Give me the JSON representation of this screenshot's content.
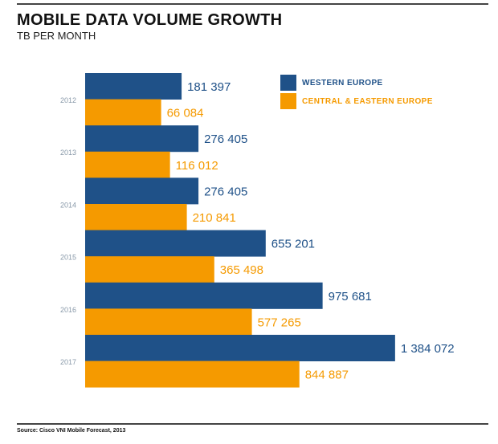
{
  "chart_data": {
    "type": "bar",
    "orientation": "horizontal",
    "title": "MOBILE DATA VOLUME GROWTH",
    "subtitle": "TB PER MONTH",
    "categories": [
      "2012",
      "2013",
      "2014",
      "2015",
      "2016",
      "2017"
    ],
    "series": [
      {
        "name": "WESTERN EUROPE",
        "color": "#1f5188",
        "values": [
          181397,
          276405,
          276405,
          655201,
          975681,
          1384072
        ],
        "labels": [
          "181 397",
          "276 405",
          "276 405",
          "655 201",
          "975 681",
          "1 384 072"
        ]
      },
      {
        "name": "CENTRAL & EASTERN EUROPE",
        "color": "#f59a00",
        "values": [
          66084,
          116012,
          210841,
          365498,
          577265,
          844887
        ],
        "labels": [
          "66 084",
          "116 012",
          "210 841",
          "365 498",
          "577 265",
          "844 887"
        ]
      }
    ],
    "legend_position": "top-right",
    "grid": false,
    "source": "Source: Cisco VNI Mobile Forecast, 2013"
  }
}
